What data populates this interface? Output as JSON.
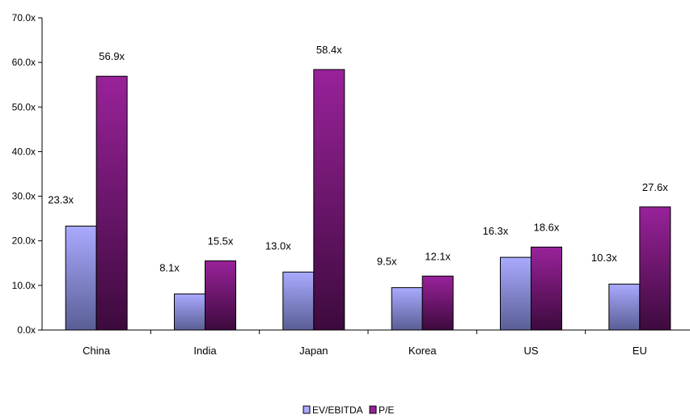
{
  "chart_data": {
    "type": "bar",
    "categories": [
      "China",
      "India",
      "Japan",
      "Korea",
      "US",
      "EU"
    ],
    "series": [
      {
        "name": "EV/EBITDA",
        "values": [
          23.3,
          8.1,
          13.0,
          9.5,
          16.3,
          10.3
        ],
        "labels": [
          "23.3x",
          "8.1x",
          "13.0x",
          "9.5x",
          "16.3x",
          "10.3x"
        ],
        "color_top": "#aaaaff",
        "color_bottom": "#5a5e95"
      },
      {
        "name": "P/E",
        "values": [
          56.9,
          15.5,
          58.4,
          12.1,
          18.6,
          27.6
        ],
        "labels": [
          "56.9x",
          "15.5x",
          "58.4x",
          "12.1x",
          "18.6x",
          "27.6x"
        ],
        "color_top": "#99229a",
        "color_bottom": "#3d0a3d"
      }
    ],
    "y_ticks": [
      "0.0x",
      "10.0x",
      "20.0x",
      "30.0x",
      "40.0x",
      "50.0x",
      "60.0x",
      "70.0x"
    ],
    "ylim": [
      0,
      70
    ],
    "grid": false,
    "legend_position": "bottom"
  }
}
